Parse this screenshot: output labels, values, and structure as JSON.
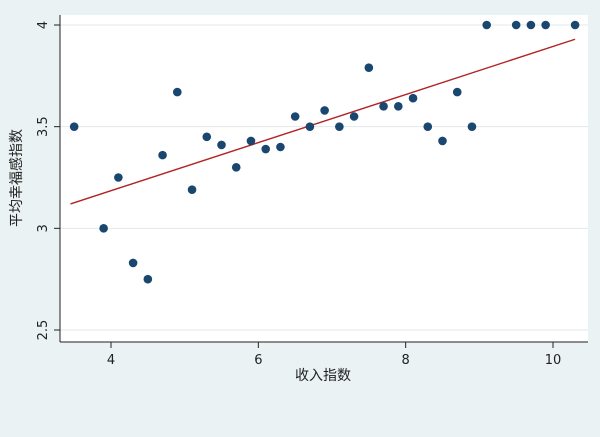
{
  "chart_data": {
    "type": "scatter",
    "title": "",
    "xlabel": "收入指数",
    "ylabel": "平均幸福感指数",
    "xlim": [
      3.4,
      10.4
    ],
    "ylim": [
      2.5,
      4.0
    ],
    "x_ticks": [
      4,
      6,
      8,
      10
    ],
    "y_ticks": [
      2.5,
      3,
      3.5,
      4
    ],
    "x_tick_labels": [
      "4",
      "6",
      "8",
      "10"
    ],
    "y_tick_labels": [
      "2.5",
      "3",
      "3.5",
      "4"
    ],
    "grid": "horizontal",
    "legend": "none",
    "colors": {
      "background": "#eaf2f3",
      "plot_background": "#ffffff",
      "marker": "#1a476f",
      "fit_line": "#b22222",
      "grid": "#e3e9ea",
      "axis": "#222222"
    },
    "series": [
      {
        "marker": "circle",
        "points": [
          {
            "x": 3.5,
            "y": 3.5
          },
          {
            "x": 3.9,
            "y": 3.0
          },
          {
            "x": 4.1,
            "y": 3.25
          },
          {
            "x": 4.3,
            "y": 2.83
          },
          {
            "x": 4.5,
            "y": 2.75
          },
          {
            "x": 4.7,
            "y": 3.36
          },
          {
            "x": 4.9,
            "y": 3.67
          },
          {
            "x": 5.1,
            "y": 3.19
          },
          {
            "x": 5.3,
            "y": 3.45
          },
          {
            "x": 5.5,
            "y": 3.41
          },
          {
            "x": 5.7,
            "y": 3.3
          },
          {
            "x": 5.9,
            "y": 3.43
          },
          {
            "x": 6.1,
            "y": 3.39
          },
          {
            "x": 6.3,
            "y": 3.4
          },
          {
            "x": 6.5,
            "y": 3.55
          },
          {
            "x": 6.7,
            "y": 3.5
          },
          {
            "x": 6.9,
            "y": 3.58
          },
          {
            "x": 7.1,
            "y": 3.5
          },
          {
            "x": 7.3,
            "y": 3.55
          },
          {
            "x": 7.5,
            "y": 3.79
          },
          {
            "x": 7.7,
            "y": 3.6
          },
          {
            "x": 7.9,
            "y": 3.6
          },
          {
            "x": 8.1,
            "y": 3.64
          },
          {
            "x": 8.3,
            "y": 3.5
          },
          {
            "x": 8.5,
            "y": 3.43
          },
          {
            "x": 8.7,
            "y": 3.67
          },
          {
            "x": 8.9,
            "y": 3.5
          },
          {
            "x": 9.1,
            "y": 4.0
          },
          {
            "x": 9.5,
            "y": 4.0
          },
          {
            "x": 9.7,
            "y": 4.0
          },
          {
            "x": 9.9,
            "y": 4.0
          },
          {
            "x": 10.3,
            "y": 4.0
          }
        ]
      }
    ],
    "fit_line": {
      "type": "linear",
      "from": {
        "x": 3.45,
        "y": 3.12
      },
      "to": {
        "x": 10.3,
        "y": 3.93
      }
    }
  }
}
